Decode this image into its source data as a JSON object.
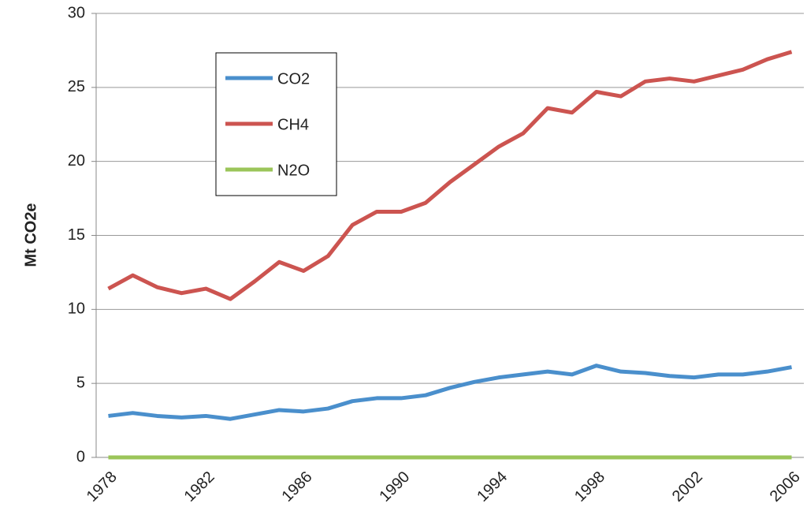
{
  "chart_data": {
    "type": "line",
    "y_label": "Mt CO2e",
    "categories": [
      "1978",
      null,
      null,
      null,
      "1982",
      null,
      null,
      null,
      "1986",
      null,
      null,
      null,
      "1990",
      null,
      null,
      null,
      "1994",
      null,
      null,
      null,
      "1998",
      null,
      null,
      null,
      "2002",
      null,
      null,
      null,
      "2006"
    ],
    "series": [
      {
        "name": "CO2",
        "color": "#4a8fcc",
        "values": [
          2.8,
          3.0,
          2.8,
          2.7,
          2.8,
          2.6,
          2.9,
          3.2,
          3.1,
          3.3,
          3.8,
          4.0,
          4.0,
          4.2,
          4.7,
          5.1,
          5.4,
          5.6,
          5.8,
          5.6,
          6.2,
          5.8,
          5.7,
          5.5,
          5.4,
          5.6,
          5.6,
          5.8,
          6.1
        ]
      },
      {
        "name": "CH4",
        "color": "#cc5450",
        "values": [
          11.4,
          12.3,
          11.5,
          11.1,
          11.4,
          10.7,
          11.9,
          13.2,
          12.6,
          13.6,
          15.7,
          16.6,
          16.6,
          17.2,
          18.6,
          19.8,
          21.0,
          21.9,
          23.6,
          23.3,
          24.7,
          24.4,
          25.4,
          25.6,
          25.4,
          25.8,
          26.2,
          26.9,
          27.4
        ]
      },
      {
        "name": "N2O",
        "color": "#9bc55a",
        "values": [
          0,
          0,
          0,
          0,
          0,
          0,
          0,
          0,
          0,
          0,
          0,
          0,
          0,
          0,
          0,
          0,
          0,
          0,
          0,
          0,
          0,
          0,
          0,
          0,
          0,
          0,
          0,
          0,
          0
        ]
      }
    ],
    "ylim": [
      0,
      30
    ],
    "yticks": [
      0,
      5,
      10,
      15,
      20,
      25,
      30
    ],
    "grid": true
  }
}
